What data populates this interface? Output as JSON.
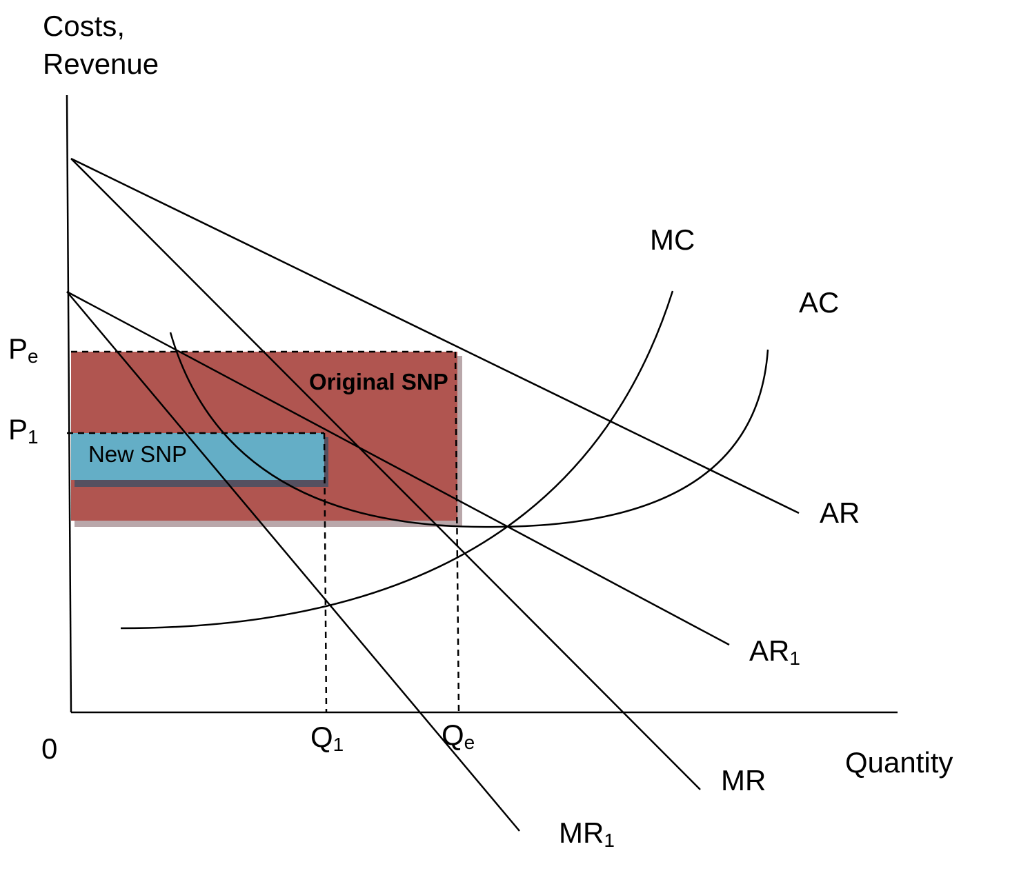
{
  "figure": {
    "y_axis_label_line1": "Costs,",
    "y_axis_label_line2": "Revenue",
    "x_axis_label": "Quantity",
    "origin_label": "0"
  },
  "price_labels": {
    "pe": {
      "main": "P",
      "sub": "e"
    },
    "p1": {
      "main": "P",
      "sub": "1"
    }
  },
  "quantity_labels": {
    "q1": {
      "main": "Q",
      "sub": "1"
    },
    "qe": {
      "main": "Q",
      "sub": "e"
    }
  },
  "curves": {
    "mc": {
      "main": "MC",
      "sub": ""
    },
    "ac": {
      "main": "AC",
      "sub": ""
    },
    "ar": {
      "main": "AR",
      "sub": ""
    },
    "ar1": {
      "main": "AR",
      "sub": "1"
    },
    "mr": {
      "main": "MR",
      "sub": ""
    },
    "mr1": {
      "main": "MR",
      "sub": "1"
    }
  },
  "areas": {
    "original": {
      "label": "Original SNP",
      "color": "#b05550"
    },
    "new": {
      "label": "New SNP",
      "color": "#64aec6"
    }
  }
}
